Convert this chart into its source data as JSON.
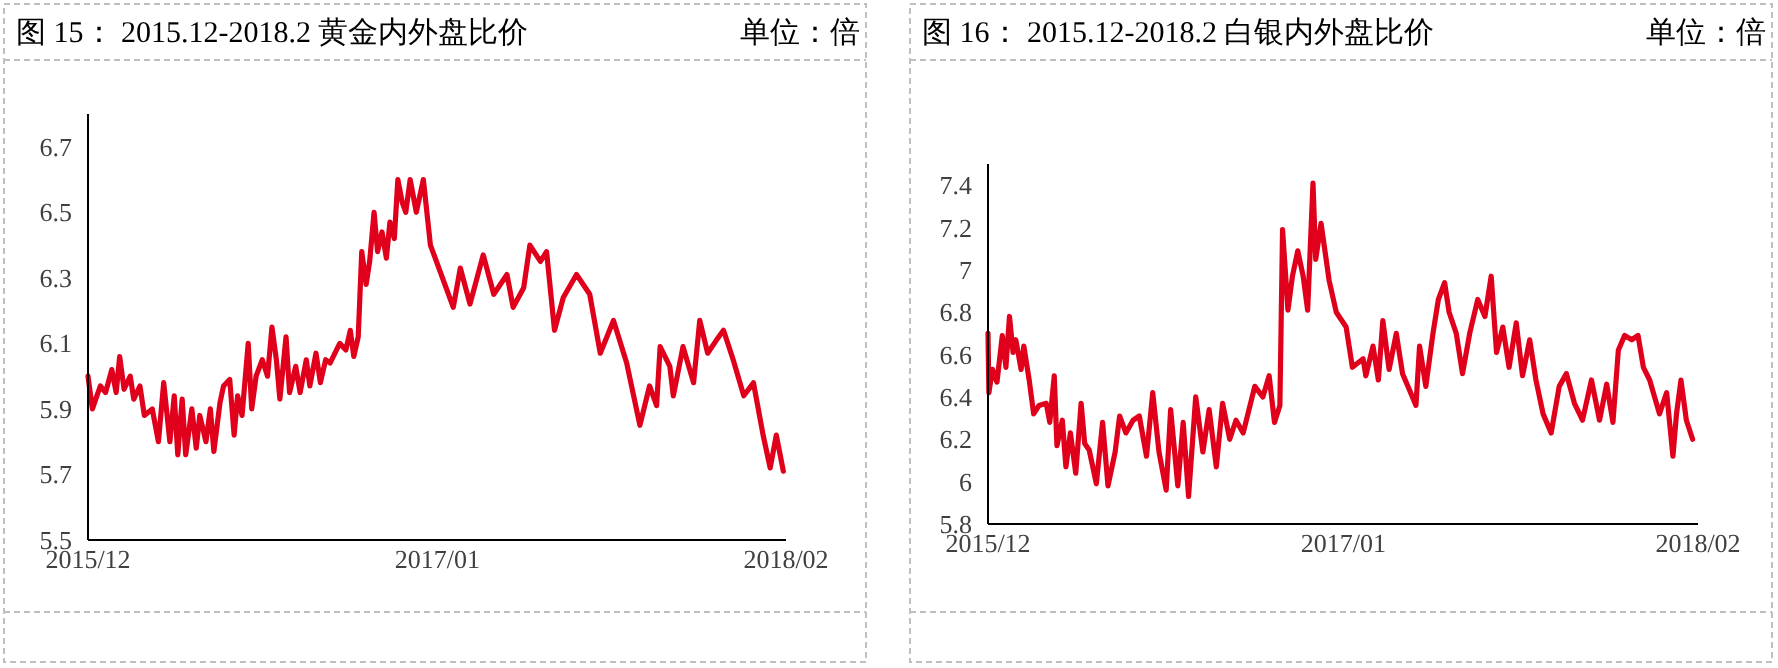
{
  "chart_data": [
    {
      "type": "line",
      "title": "图 15： 2015.12-2018.2 黄金内外盘比价",
      "subtitle": "单位：倍",
      "x": [
        "2015-12-01",
        "2015-12-06",
        "2015-12-15",
        "2015-12-21",
        "2015-12-28",
        "2016-01-02",
        "2016-01-06",
        "2016-01-11",
        "2016-01-18",
        "2016-01-22",
        "2016-01-29",
        "2016-02-03",
        "2016-02-12",
        "2016-02-19",
        "2016-02-25",
        "2016-03-03",
        "2016-03-08",
        "2016-03-12",
        "2016-03-17",
        "2016-03-21",
        "2016-03-28",
        "2016-04-02",
        "2016-04-06",
        "2016-04-13",
        "2016-04-18",
        "2016-04-22",
        "2016-04-29",
        "2016-05-03",
        "2016-05-10",
        "2016-05-15",
        "2016-05-19",
        "2016-05-24",
        "2016-05-31",
        "2016-06-04",
        "2016-06-09",
        "2016-06-16",
        "2016-06-22",
        "2016-06-27",
        "2016-07-02",
        "2016-07-06",
        "2016-07-13",
        "2016-07-17",
        "2016-07-24",
        "2016-07-29",
        "2016-08-05",
        "2016-08-09",
        "2016-08-16",
        "2016-08-21",
        "2016-08-27",
        "2016-09-01",
        "2016-09-12",
        "2016-09-19",
        "2016-09-24",
        "2016-09-28",
        "2016-10-03",
        "2016-10-07",
        "2016-10-12",
        "2016-10-16",
        "2016-10-21",
        "2016-10-25",
        "2016-10-30",
        "2016-11-04",
        "2016-11-08",
        "2016-11-13",
        "2016-11-17",
        "2016-11-22",
        "2016-11-26",
        "2016-12-01",
        "2016-12-08",
        "2016-12-16",
        "2016-12-24",
        "2017-01-04",
        "2017-01-19",
        "2017-01-27",
        "2017-02-07",
        "2017-02-22",
        "2017-03-06",
        "2017-03-21",
        "2017-03-28",
        "2017-04-09",
        "2017-04-16",
        "2017-04-28",
        "2017-05-05",
        "2017-05-14",
        "2017-05-24",
        "2017-06-08",
        "2017-06-23",
        "2017-07-05",
        "2017-07-20",
        "2017-08-04",
        "2017-08-19",
        "2017-08-30",
        "2017-09-07",
        "2017-09-11",
        "2017-09-22",
        "2017-09-26",
        "2017-10-07",
        "2017-10-19",
        "2017-10-26",
        "2017-11-04",
        "2017-11-14",
        "2017-11-22",
        "2017-12-03",
        "2017-12-15",
        "2017-12-26",
        "2018-01-06",
        "2018-01-14",
        "2018-01-21",
        "2018-01-29"
      ],
      "series": [
        {
          "color": "#e0001b",
          "values": [
            6.0,
            5.9,
            5.97,
            5.95,
            6.02,
            5.95,
            6.06,
            5.96,
            6.0,
            5.93,
            5.97,
            5.88,
            5.9,
            5.8,
            5.98,
            5.8,
            5.94,
            5.76,
            5.93,
            5.76,
            5.9,
            5.78,
            5.88,
            5.8,
            5.9,
            5.77,
            5.92,
            5.97,
            5.99,
            5.82,
            5.94,
            5.88,
            6.1,
            5.9,
            6.0,
            6.05,
            6.0,
            6.15,
            6.05,
            5.93,
            6.12,
            5.95,
            6.03,
            5.95,
            6.05,
            5.97,
            6.07,
            5.98,
            6.05,
            6.04,
            6.1,
            6.08,
            6.14,
            6.06,
            6.12,
            6.38,
            6.28,
            6.35,
            6.5,
            6.38,
            6.44,
            6.36,
            6.47,
            6.42,
            6.6,
            6.53,
            6.5,
            6.6,
            6.5,
            6.6,
            6.4,
            6.32,
            6.21,
            6.33,
            6.22,
            6.37,
            6.25,
            6.31,
            6.21,
            6.27,
            6.4,
            6.35,
            6.38,
            6.14,
            6.24,
            6.31,
            6.25,
            6.07,
            6.17,
            6.04,
            5.85,
            5.97,
            5.91,
            6.09,
            6.03,
            5.94,
            6.09,
            5.98,
            6.17,
            6.07,
            6.11,
            6.14,
            6.05,
            5.94,
            5.98,
            5.82,
            5.72,
            5.82,
            5.71
          ]
        }
      ],
      "xlim": [
        "2015-12",
        "2018-02"
      ],
      "xticks": [
        {
          "value": "2015-12",
          "label": "2015/12"
        },
        {
          "value": "2017-01",
          "label": "2017/01"
        },
        {
          "value": "2018-02",
          "label": "2018/02"
        }
      ],
      "ylim": [
        5.5,
        6.8
      ],
      "yticks": [
        5.5,
        5.7,
        5.9,
        6.1,
        6.3,
        6.5,
        6.7
      ],
      "grid": false,
      "marker": "none",
      "line_style": "solid"
    },
    {
      "type": "line",
      "title": "图 16： 2015.12-2018.2 白银内外盘比价",
      "subtitle": "单位：倍",
      "x": [
        "2015-12-01",
        "2015-12-02",
        "2015-12-06",
        "2015-12-11",
        "2015-12-17",
        "2015-12-21",
        "2015-12-25",
        "2015-12-29",
        "2016-01-01",
        "2016-01-07",
        "2016-01-10",
        "2016-01-16",
        "2016-01-21",
        "2016-01-27",
        "2016-02-04",
        "2016-02-08",
        "2016-02-13",
        "2016-02-16",
        "2016-02-22",
        "2016-02-26",
        "2016-03-02",
        "2016-03-08",
        "2016-03-14",
        "2016-03-18",
        "2016-03-23",
        "2016-03-31",
        "2016-04-07",
        "2016-04-13",
        "2016-04-21",
        "2016-04-26",
        "2016-05-03",
        "2016-05-11",
        "2016-05-18",
        "2016-05-26",
        "2016-06-02",
        "2016-06-09",
        "2016-06-17",
        "2016-06-22",
        "2016-06-30",
        "2016-07-06",
        "2016-07-12",
        "2016-07-20",
        "2016-07-28",
        "2016-08-04",
        "2016-08-12",
        "2016-08-19",
        "2016-08-27",
        "2016-09-03",
        "2016-09-11",
        "2016-09-24",
        "2016-10-03",
        "2016-10-10",
        "2016-10-16",
        "2016-10-22",
        "2016-10-25",
        "2016-10-31",
        "2016-11-05",
        "2016-11-11",
        "2016-11-17",
        "2016-11-22",
        "2016-11-28",
        "2016-12-01",
        "2016-12-07",
        "2016-12-16",
        "2016-12-24",
        "2017-01-04",
        "2017-01-11",
        "2017-01-23",
        "2017-01-26",
        "2017-02-03",
        "2017-02-09",
        "2017-02-14",
        "2017-02-21",
        "2017-03-01",
        "2017-03-08",
        "2017-03-16",
        "2017-03-23",
        "2017-03-27",
        "2017-04-03",
        "2017-04-11",
        "2017-04-17",
        "2017-04-24",
        "2017-04-29",
        "2017-05-07",
        "2017-05-14",
        "2017-05-22",
        "2017-05-31",
        "2017-06-08",
        "2017-06-15",
        "2017-06-21",
        "2017-06-28",
        "2017-07-05",
        "2017-07-13",
        "2017-07-20",
        "2017-07-28",
        "2017-08-04",
        "2017-08-12",
        "2017-08-21",
        "2017-08-30",
        "2017-09-07",
        "2017-09-16",
        "2017-09-25",
        "2017-10-05",
        "2017-10-14",
        "2017-10-22",
        "2017-10-29",
        "2017-11-04",
        "2017-11-11",
        "2017-11-19",
        "2017-11-26",
        "2017-12-02",
        "2017-12-09",
        "2017-12-20",
        "2017-12-28",
        "2018-01-04",
        "2018-01-08",
        "2018-01-13",
        "2018-01-19",
        "2018-01-26"
      ],
      "series": [
        {
          "color": "#e0001b",
          "values": [
            6.7,
            6.42,
            6.53,
            6.47,
            6.69,
            6.54,
            6.78,
            6.61,
            6.67,
            6.53,
            6.64,
            6.48,
            6.32,
            6.36,
            6.37,
            6.28,
            6.5,
            6.17,
            6.29,
            6.07,
            6.23,
            6.04,
            6.37,
            6.18,
            6.15,
            5.99,
            6.28,
            5.98,
            6.14,
            6.31,
            6.23,
            6.29,
            6.31,
            6.12,
            6.42,
            6.14,
            5.96,
            6.34,
            5.98,
            6.28,
            5.93,
            6.4,
            6.14,
            6.34,
            6.07,
            6.37,
            6.2,
            6.29,
            6.23,
            6.45,
            6.4,
            6.5,
            6.28,
            6.36,
            7.19,
            6.81,
            6.97,
            7.09,
            6.97,
            6.81,
            7.41,
            7.05,
            7.22,
            6.95,
            6.8,
            6.73,
            6.54,
            6.58,
            6.5,
            6.64,
            6.48,
            6.76,
            6.53,
            6.7,
            6.51,
            6.43,
            6.36,
            6.64,
            6.45,
            6.7,
            6.86,
            6.94,
            6.8,
            6.7,
            6.51,
            6.7,
            6.86,
            6.78,
            6.97,
            6.61,
            6.73,
            6.54,
            6.75,
            6.5,
            6.67,
            6.48,
            6.32,
            6.23,
            6.45,
            6.51,
            6.37,
            6.29,
            6.48,
            6.29,
            6.46,
            6.28,
            6.62,
            6.69,
            6.67,
            6.69,
            6.54,
            6.48,
            6.32,
            6.42,
            6.12,
            6.32,
            6.48,
            6.29,
            6.2
          ]
        }
      ],
      "xlim": [
        "2015-12",
        "2018-02"
      ],
      "xticks": [
        {
          "value": "2015-12",
          "label": "2015/12"
        },
        {
          "value": "2017-01",
          "label": "2017/01"
        },
        {
          "value": "2018-02",
          "label": "2018/02"
        }
      ],
      "ylim": [
        5.8,
        7.5
      ],
      "yticks": [
        5.8,
        6,
        6.2,
        6.4,
        6.6,
        6.8,
        7,
        7.2,
        7.4
      ],
      "grid": false,
      "marker": "none",
      "line_style": "solid"
    }
  ]
}
